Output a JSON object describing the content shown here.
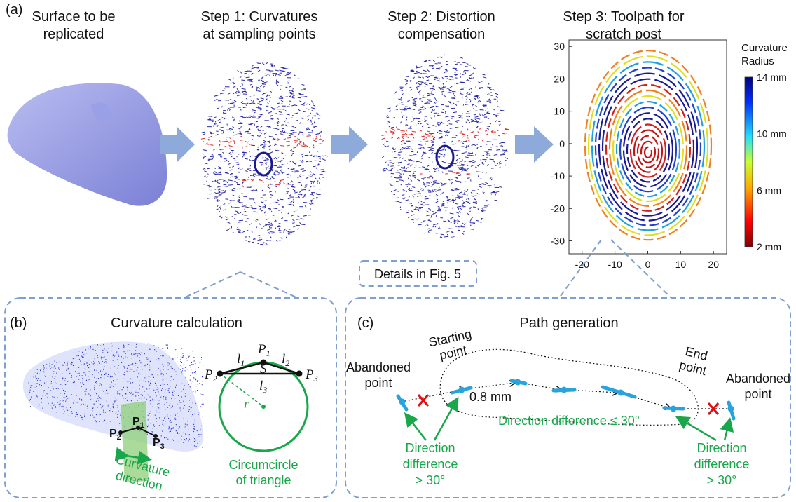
{
  "panel_a": {
    "label": "(a)",
    "steps": [
      [
        "Surface to be",
        "replicated"
      ],
      [
        "Step 1: Curvatures",
        "at sampling points"
      ],
      [
        "Step 2: Distortion",
        "compensation"
      ],
      [
        "Step 3: Toolpath for",
        "scratch post"
      ]
    ],
    "note": "Details in Fig. 5",
    "plot": {
      "xlim": [
        -24,
        24
      ],
      "ylim": [
        -34,
        32
      ],
      "xticks": [
        -20,
        -10,
        0,
        10,
        20
      ],
      "yticks": [
        30,
        20,
        10,
        0,
        -10,
        -20,
        -30
      ],
      "colorbar_title": [
        "Curvature",
        "Radius"
      ],
      "clim": [
        2,
        14
      ],
      "colorbar_ticks": [
        {
          "value": 14,
          "label": "14 mm"
        },
        {
          "value": 10,
          "label": "10 mm"
        },
        {
          "value": 6,
          "label": "6 mm"
        },
        {
          "value": 2,
          "label": "2 mm"
        }
      ]
    }
  },
  "panel_b": {
    "label": "(b)",
    "title": "Curvature calculation",
    "surface_points": [
      {
        "base": "P",
        "sub": "2"
      },
      {
        "base": "P",
        "sub": "1"
      },
      {
        "base": "P",
        "sub": "3"
      }
    ],
    "direction_caption": [
      "Curvature",
      "direction"
    ],
    "triangle_points": [
      {
        "base": "P",
        "sub": "1"
      },
      {
        "base": "P",
        "sub": "2"
      },
      {
        "base": "P",
        "sub": "3"
      }
    ],
    "sides": [
      {
        "base": "l",
        "sub": "1"
      },
      {
        "base": "l",
        "sub": "2"
      },
      {
        "base": "l",
        "sub": "3"
      }
    ],
    "area": "S",
    "radius": "r",
    "circle_caption": [
      "Circumcircle",
      "of triangle"
    ]
  },
  "panel_c": {
    "label": "(c)",
    "title": "Path generation",
    "abandoned_left": [
      "Abandoned",
      "point"
    ],
    "starting": [
      "Starting",
      "point"
    ],
    "end": [
      "End",
      "point"
    ],
    "abandoned_right": [
      "Abandoned",
      "point"
    ],
    "spacing": "0.8 mm",
    "within": "Direction difference ≤ 30°",
    "beyond_left": [
      "Direction",
      "difference",
      "> 30°"
    ],
    "beyond_right": [
      "Direction",
      "difference",
      "> 30°"
    ]
  }
}
